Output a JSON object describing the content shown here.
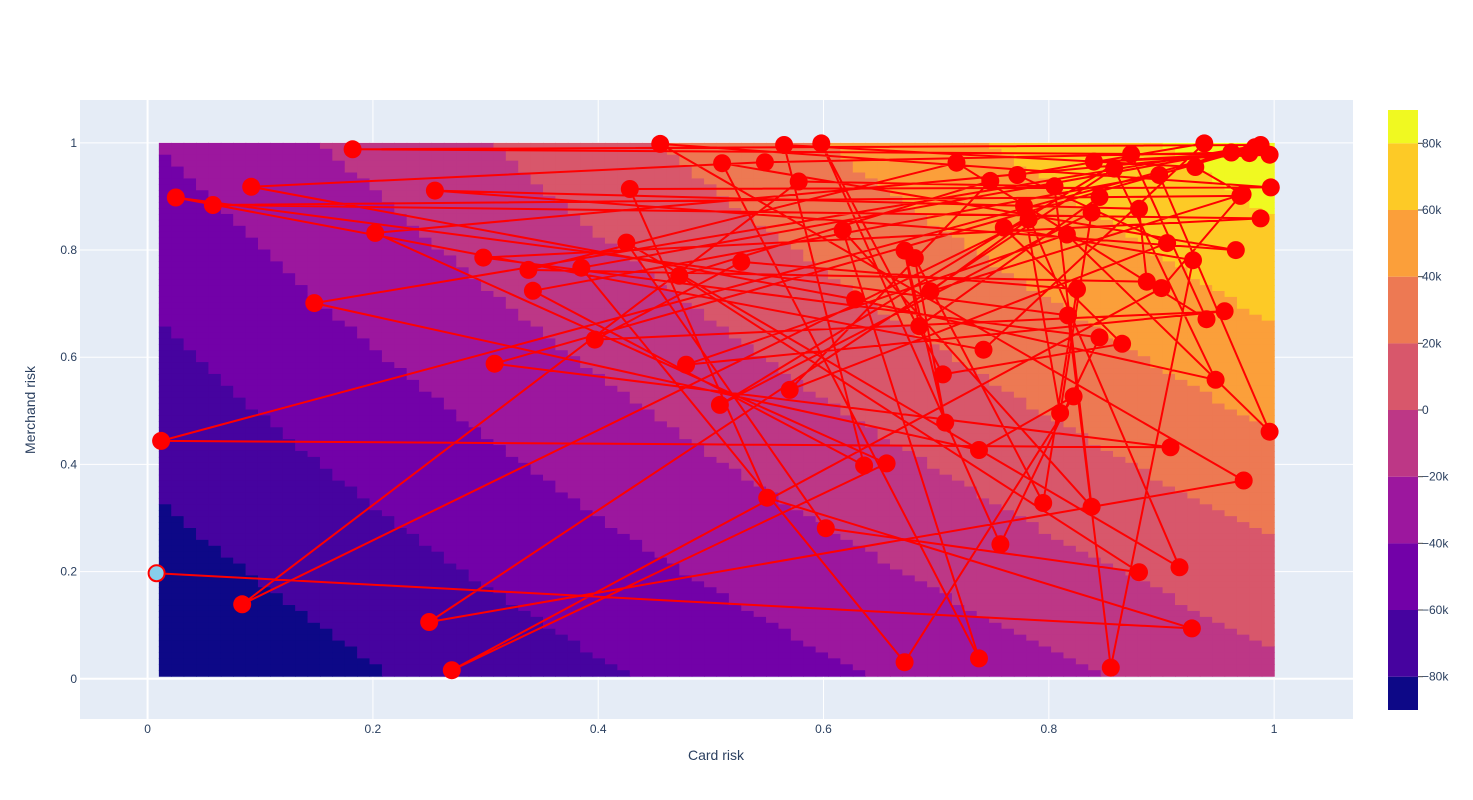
{
  "chart_data": {
    "type": "contour+line",
    "xlabel": "Card risk",
    "ylabel": "Merchand risk",
    "xlim": [
      -0.06,
      1.07
    ],
    "ylim": [
      -0.075,
      1.08
    ],
    "x_ticks": [
      0,
      0.2,
      0.4,
      0.6,
      0.8,
      1
    ],
    "x_tick_labels": [
      "0",
      "0.2",
      "0.4",
      "0.6",
      "0.8",
      "1"
    ],
    "y_ticks": [
      0,
      0.2,
      0.4,
      0.6,
      0.8,
      1
    ],
    "y_tick_labels": [
      "0",
      "0.2",
      "0.4",
      "0.6",
      "0.8",
      "1"
    ],
    "grid": true,
    "colorbar": {
      "range": [
        -90000,
        90000
      ],
      "levels": [
        -90000,
        -80000,
        -60000,
        -40000,
        -20000,
        0,
        20000,
        40000,
        60000,
        80000,
        90000
      ],
      "colors": [
        "#0d0887",
        "#46039f",
        "#7201a8",
        "#9c179e",
        "#bd3786",
        "#d8576b",
        "#ed7953",
        "#fb9f3a",
        "#fdca26",
        "#f0f921"
      ],
      "ticks": [
        -80000,
        -60000,
        -40000,
        -20000,
        0,
        20000,
        40000,
        60000,
        80000
      ],
      "tick_labels": [
        "−80k",
        "−60k",
        "−40k",
        "−20k",
        "0",
        "20k",
        "40k",
        "60k",
        "80k"
      ]
    },
    "contour_domain": {
      "x": [
        0.01,
        1.0
      ],
      "y": [
        0.005,
        1.0
      ]
    },
    "contour_model": {
      "constant": -101000,
      "x_coef": 95000,
      "y_coef": 60000,
      "xy_coef": 40000
    },
    "path_color": "#ff0000",
    "start_point": {
      "x": 0.008,
      "y": 0.197,
      "color": "#87ceeb"
    },
    "path": [
      [
        0.008,
        0.197
      ],
      [
        0.927,
        0.094
      ],
      [
        0.55,
        0.338
      ],
      [
        0.428,
        0.914
      ],
      [
        0.997,
        0.917
      ],
      [
        0.455,
        0.998
      ],
      [
        0.973,
        0.37
      ],
      [
        0.25,
        0.106
      ],
      [
        0.858,
        0.952
      ],
      [
        0.948,
        0.558
      ],
      [
        0.628,
        0.708
      ],
      [
        0.092,
        0.918
      ],
      [
        0.548,
        0.964
      ],
      [
        0.962,
        0.982
      ],
      [
        0.012,
        0.444
      ],
      [
        0.908,
        0.432
      ],
      [
        0.308,
        0.588
      ],
      [
        0.983,
        0.992
      ],
      [
        0.385,
        0.767
      ],
      [
        0.672,
        0.031
      ],
      [
        0.822,
        0.527
      ],
      [
        0.738,
        0.427
      ],
      [
        0.148,
        0.701
      ],
      [
        0.988,
        0.996
      ],
      [
        0.182,
        0.988
      ],
      [
        0.996,
        0.978
      ],
      [
        0.84,
        0.965
      ],
      [
        0.978,
        0.981
      ],
      [
        0.202,
        0.832
      ],
      [
        0.656,
        0.402
      ],
      [
        0.27,
        0.016
      ],
      [
        0.9,
        0.729
      ],
      [
        0.97,
        0.901
      ],
      [
        0.058,
        0.884
      ],
      [
        0.988,
        0.859
      ],
      [
        0.298,
        0.786
      ],
      [
        0.845,
        0.637
      ],
      [
        0.757,
        0.251
      ],
      [
        0.598,
        0.999
      ],
      [
        0.706,
        0.568
      ],
      [
        0.865,
        0.625
      ],
      [
        0.76,
        0.842
      ],
      [
        0.928,
        0.781
      ],
      [
        0.855,
        0.021
      ],
      [
        0.817,
        0.678
      ],
      [
        0.025,
        0.898
      ],
      [
        0.742,
        0.614
      ],
      [
        0.938,
        0.999
      ],
      [
        0.772,
        0.94
      ],
      [
        0.905,
        0.813
      ],
      [
        0.57,
        0.539
      ],
      [
        0.748,
        0.929
      ],
      [
        0.472,
        0.752
      ],
      [
        0.88,
        0.199
      ],
      [
        0.602,
        0.281
      ],
      [
        0.425,
        0.814
      ],
      [
        0.916,
        0.208
      ],
      [
        0.778,
        0.882
      ],
      [
        0.81,
        0.496
      ],
      [
        0.838,
        0.87
      ],
      [
        0.508,
        0.511
      ],
      [
        0.873,
        0.979
      ],
      [
        0.94,
        0.671
      ],
      [
        0.718,
        0.963
      ],
      [
        0.338,
        0.763
      ],
      [
        0.887,
        0.741
      ],
      [
        0.88,
        0.877
      ],
      [
        0.255,
        0.911
      ],
      [
        0.966,
        0.8
      ],
      [
        0.51,
        0.962
      ],
      [
        0.738,
        0.038
      ],
      [
        0.617,
        0.837
      ],
      [
        0.838,
        0.321
      ],
      [
        0.805,
        0.919
      ],
      [
        0.578,
        0.928
      ],
      [
        0.084,
        0.139
      ],
      [
        0.782,
        0.857
      ],
      [
        0.695,
        0.723
      ],
      [
        0.972,
        0.904
      ],
      [
        0.93,
        0.955
      ],
      [
        0.565,
        0.996
      ],
      [
        0.636,
        0.398
      ],
      [
        0.342,
        0.724
      ],
      [
        0.898,
        0.94
      ],
      [
        0.996,
        0.461
      ],
      [
        0.816,
        0.829
      ],
      [
        0.478,
        0.586
      ],
      [
        0.956,
        0.686
      ],
      [
        0.397,
        0.633
      ],
      [
        0.527,
        0.778
      ],
      [
        0.825,
        0.727
      ],
      [
        0.795,
        0.328
      ],
      [
        0.681,
        0.785
      ],
      [
        0.708,
        0.478
      ],
      [
        0.672,
        0.799
      ],
      [
        0.685,
        0.658
      ],
      [
        0.845,
        0.899
      ]
    ]
  }
}
